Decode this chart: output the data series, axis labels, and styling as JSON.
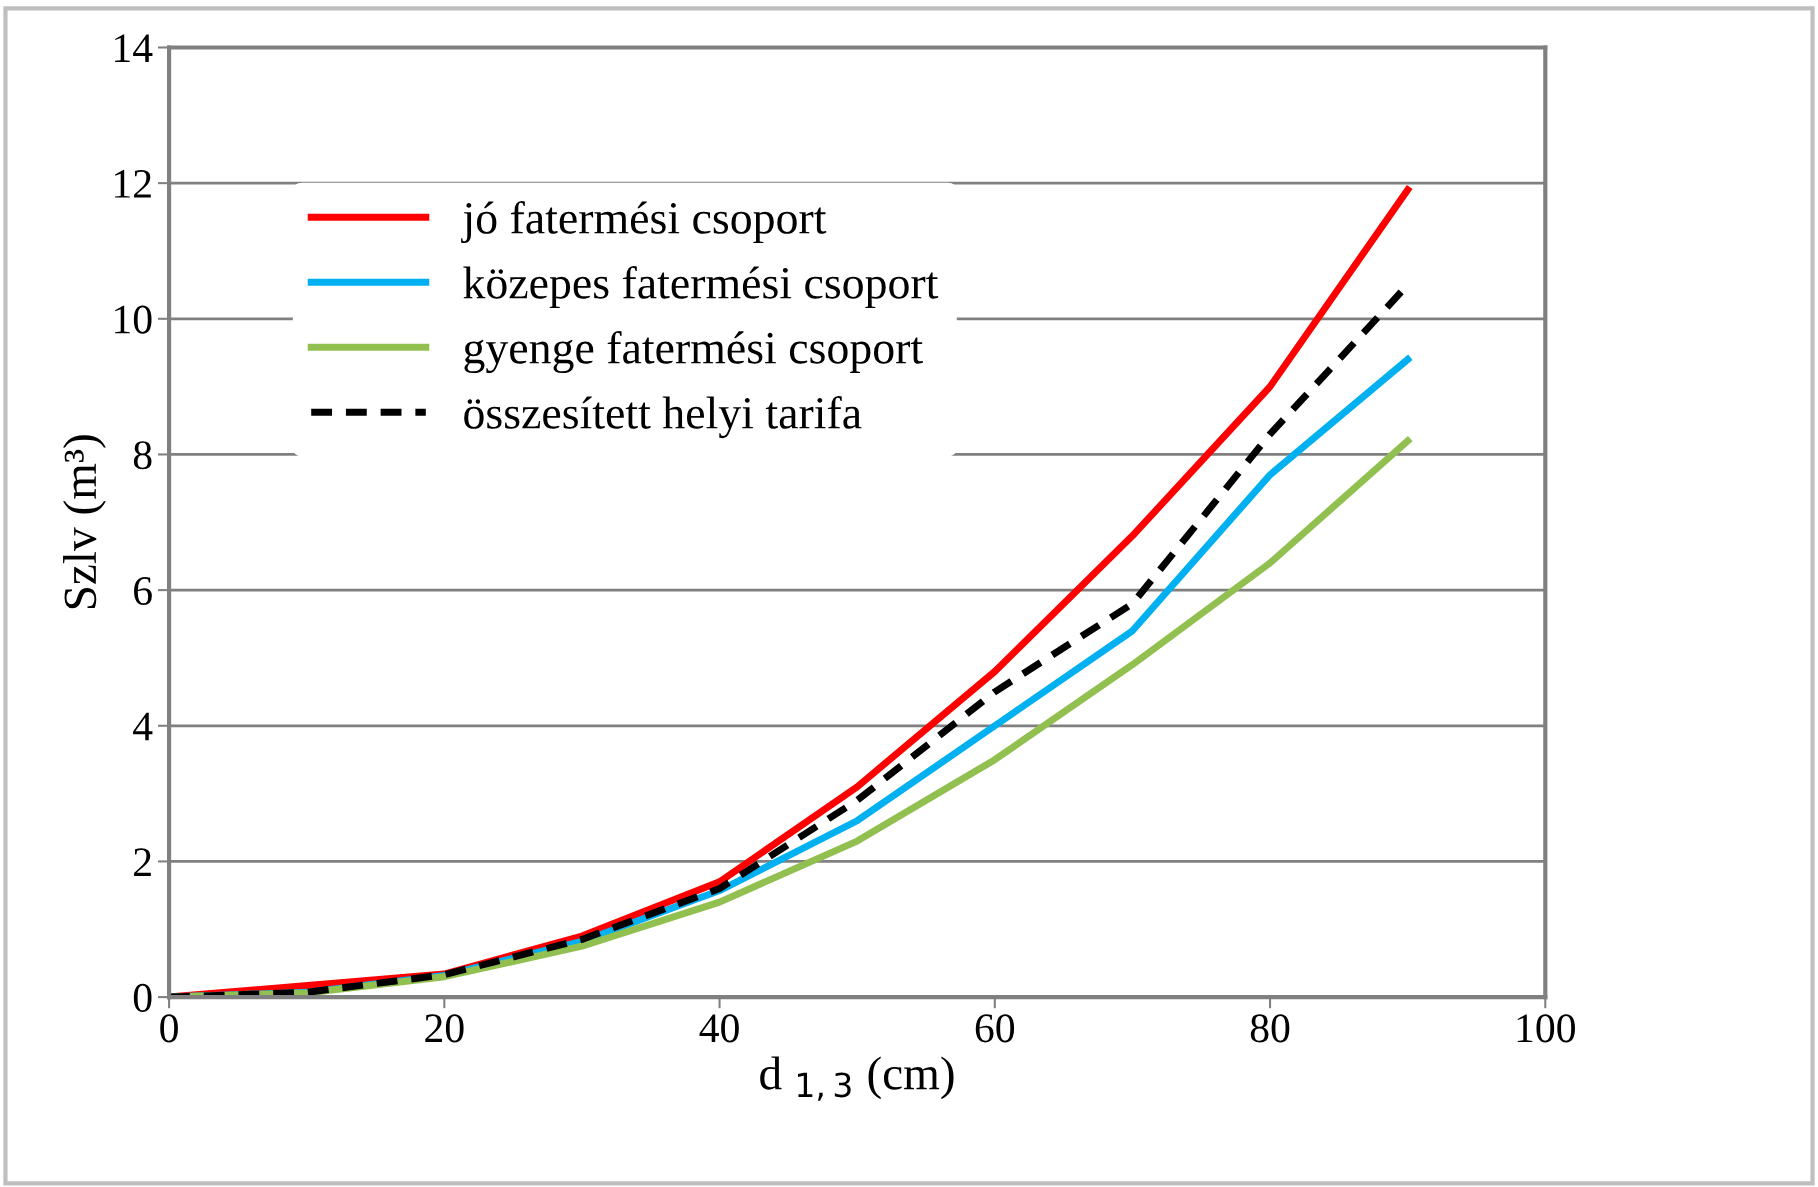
{
  "chart_data": {
    "type": "line",
    "xlabel": "d $_{1,3}$ (cm)",
    "ylabel": "Szlv (m³)",
    "x": [
      0,
      10,
      20,
      30,
      40,
      50,
      60,
      70,
      80,
      90
    ],
    "series": [
      {
        "name": "jó fatermési csoport",
        "color": "#ff0000",
        "line_style": "solid",
        "x": [
          0,
          20,
          30,
          40,
          50,
          60,
          70,
          80,
          90
        ],
        "values": [
          0,
          0.34,
          0.9,
          1.7,
          3.1,
          4.8,
          6.8,
          9.0,
          11.9
        ]
      },
      {
        "name": "közepes fatermési csoport",
        "color": "#00b0f0",
        "line_style": "solid",
        "values": [
          0,
          0.07,
          0.32,
          0.82,
          1.57,
          2.6,
          4.0,
          5.4,
          7.7,
          9.4
        ]
      },
      {
        "name": "gyenge fatermési csoport",
        "color": "#92c050",
        "line_style": "solid",
        "values": [
          0,
          0.06,
          0.3,
          0.75,
          1.4,
          2.3,
          3.5,
          4.9,
          6.4,
          8.2
        ]
      },
      {
        "name": "összesített helyi tarifa",
        "color": "#000000",
        "line_style": "dashed",
        "values": [
          0,
          0.07,
          0.33,
          0.85,
          1.6,
          2.9,
          4.5,
          5.8,
          8.3,
          10.5
        ]
      }
    ],
    "xlim": [
      0,
      100
    ],
    "xticks": [
      0,
      20,
      40,
      60,
      80,
      100
    ],
    "ylim": [
      0,
      14
    ],
    "yticks": [
      0,
      2,
      4,
      6,
      8,
      10,
      12,
      14
    ],
    "grid": "y",
    "legend": "top left",
    "marker": "none"
  }
}
